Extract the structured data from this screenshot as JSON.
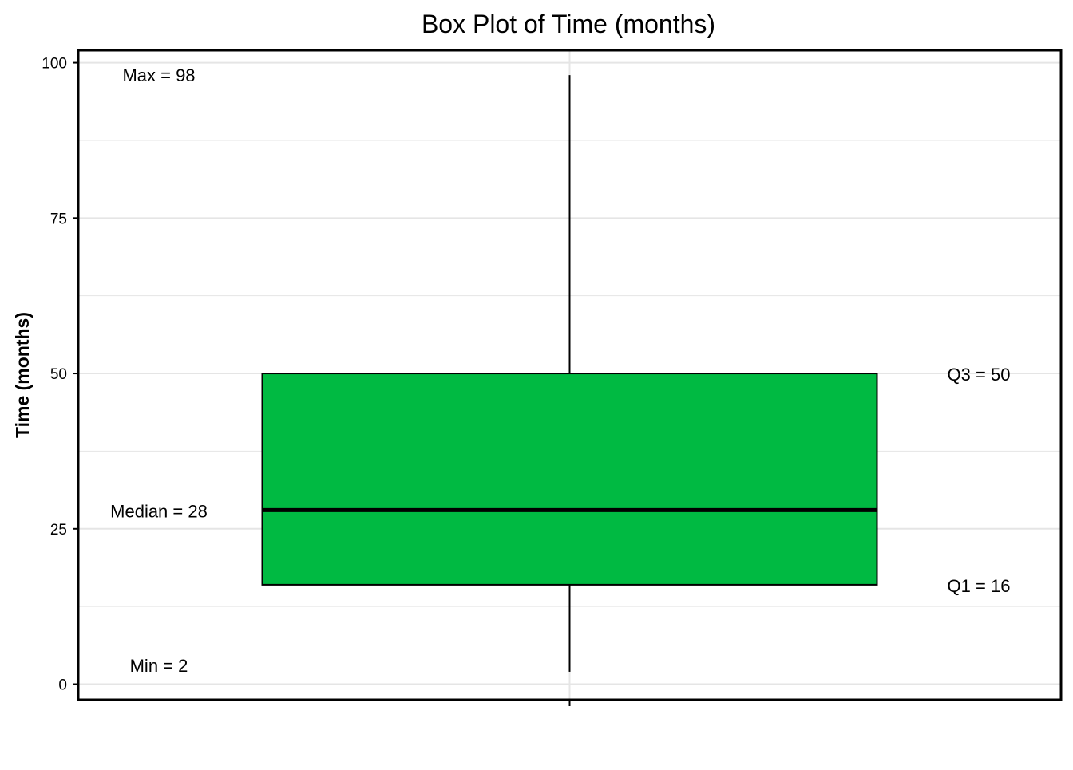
{
  "chart_data": {
    "type": "box",
    "title": "Box Plot of Time (months)",
    "xlabel": "",
    "ylabel": "Time (months)",
    "ylim": [
      -2.5,
      102
    ],
    "y_ticks": [
      0,
      25,
      50,
      75,
      100
    ],
    "y_minor_gridlines": [
      12.5,
      37.5,
      62.5,
      87.5
    ],
    "grid": true,
    "stats": {
      "min": 2,
      "q1": 16,
      "median": 28,
      "q3": 50,
      "max": 98
    },
    "box_color": "#00BA42",
    "grid_color": "#E5E5E5",
    "annotations": [
      {
        "key": "max",
        "label": "Max = ",
        "value": "98"
      },
      {
        "key": "q3",
        "label": "Q3 = ",
        "value": "50"
      },
      {
        "key": "median",
        "label": "Median = ",
        "value": "28"
      },
      {
        "key": "q1",
        "label": "Q1 = ",
        "value": "16"
      },
      {
        "key": "min",
        "label": "Min = ",
        "value": "2"
      }
    ]
  }
}
